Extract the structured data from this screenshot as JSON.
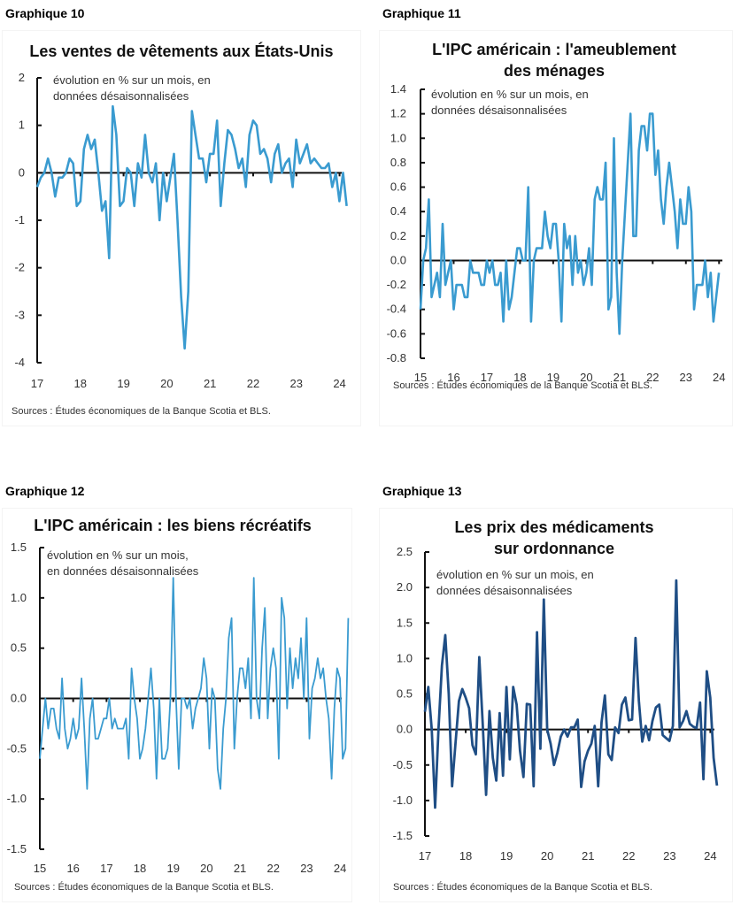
{
  "chart_data": [
    {
      "id": "g10",
      "label": "Graphique 10",
      "type": "line",
      "title": "Les ventes de vêtements aux États-Unis",
      "note": "évolution en % sur un mois, en données désaisonnalisées",
      "source": "Sources : Études économiques de la Banque Scotia et BLS.",
      "xlabel": "",
      "ylabel": "",
      "x_ticks": [
        "17",
        "18",
        "19",
        "20",
        "21",
        "22",
        "23",
        "24"
      ],
      "x_range": [
        17,
        24.05
      ],
      "ylim": [
        -4,
        2
      ],
      "y_ticks": [
        2,
        1,
        0,
        -1,
        -2,
        -3,
        -4
      ],
      "y_tick_labels": [
        "2",
        "1",
        "0",
        "-1",
        "-2",
        "-3",
        "-4"
      ],
      "grid": false,
      "color": "#3a9bd0",
      "series": [
        {
          "name": "ventes de vêtements",
          "start": 17.0,
          "step": 0.0833,
          "values": [
            -0.3,
            -0.1,
            0.0,
            0.3,
            0.0,
            -0.5,
            -0.1,
            -0.1,
            0.0,
            0.3,
            0.2,
            -0.7,
            -0.6,
            0.5,
            0.8,
            0.5,
            0.7,
            0.0,
            -0.8,
            -0.6,
            -1.8,
            1.4,
            0.8,
            -0.7,
            -0.6,
            0.1,
            0.0,
            -0.7,
            0.2,
            -0.1,
            0.8,
            0.0,
            -0.2,
            0.2,
            -1.0,
            0.0,
            -0.6,
            -0.1,
            0.4,
            -1.0,
            -2.6,
            -3.7,
            -2.5,
            1.3,
            0.8,
            0.3,
            0.3,
            -0.2,
            0.4,
            0.4,
            1.1,
            -0.7,
            0.2,
            0.9,
            0.8,
            0.5,
            0.1,
            0.3,
            -0.3,
            0.8,
            1.1,
            1.0,
            0.4,
            0.5,
            0.3,
            -0.2,
            0.4,
            0.6,
            0.0,
            0.2,
            0.3,
            -0.3,
            0.7,
            0.2,
            0.4,
            0.6,
            0.2,
            0.3,
            0.2,
            0.1,
            0.1,
            0.2,
            -0.3,
            0.0,
            -0.6,
            0.0,
            -0.7
          ]
        }
      ]
    },
    {
      "id": "g11",
      "label": "Graphique 11",
      "type": "line",
      "title": "L'IPC américain : l'ameublement des ménages",
      "title_lines": [
        "L'IPC américain : l'ameublement",
        "des ménages"
      ],
      "note": "évolution en % sur un mois, en données désaisonnalisées",
      "source": "Sources : Études économiques de la Banque Scotia et BLS.",
      "xlabel": "",
      "ylabel": "",
      "x_ticks": [
        "15",
        "16",
        "17",
        "18",
        "19",
        "20",
        "21",
        "22",
        "23",
        "24"
      ],
      "x_range": [
        15,
        24.1
      ],
      "ylim": [
        -0.8,
        1.4
      ],
      "y_ticks": [
        1.4,
        1.2,
        1.0,
        0.8,
        0.6,
        0.4,
        0.2,
        0.0,
        -0.2,
        -0.4,
        -0.6,
        -0.8
      ],
      "y_tick_labels": [
        "1.4",
        "1.2",
        "1.0",
        "0.8",
        "0.6",
        "0.4",
        "0.2",
        "0.0",
        "-0.2",
        "-0.4",
        "-0.6",
        "-0.8"
      ],
      "grid": false,
      "color": "#3a9bd0",
      "series": [
        {
          "name": "ameublement",
          "start": 15.0,
          "step": 0.0833,
          "values": [
            -0.4,
            0.0,
            0.1,
            0.5,
            -0.3,
            -0.2,
            -0.1,
            -0.3,
            0.3,
            -0.2,
            -0.1,
            0.0,
            -0.4,
            -0.2,
            -0.2,
            -0.2,
            -0.3,
            -0.3,
            0.0,
            -0.1,
            -0.1,
            -0.1,
            -0.2,
            -0.2,
            0.0,
            -0.1,
            0.0,
            -0.2,
            -0.2,
            -0.1,
            -0.5,
            0.0,
            -0.4,
            -0.3,
            -0.1,
            0.1,
            0.1,
            0.0,
            0.0,
            0.6,
            -0.5,
            0.0,
            0.1,
            0.1,
            0.1,
            0.4,
            0.2,
            0.1,
            0.3,
            0.3,
            0.0,
            -0.5,
            0.3,
            0.1,
            0.2,
            -0.2,
            0.2,
            -0.1,
            0.0,
            -0.2,
            -0.1,
            0.1,
            -0.2,
            0.5,
            0.6,
            0.5,
            0.5,
            0.8,
            -0.4,
            -0.3,
            1.0,
            -0.1,
            -0.6,
            0.0,
            0.4,
            0.8,
            1.2,
            0.2,
            0.2,
            0.9,
            1.1,
            1.1,
            0.9,
            1.2,
            1.2,
            0.7,
            0.9,
            0.5,
            0.3,
            0.6,
            0.8,
            0.6,
            0.4,
            0.1,
            0.5,
            0.3,
            0.3,
            0.6,
            0.4,
            -0.4,
            -0.2,
            -0.2,
            -0.2,
            0.0,
            -0.3,
            -0.1,
            -0.5,
            -0.3,
            -0.1
          ]
        }
      ]
    },
    {
      "id": "g12",
      "label": "Graphique 12",
      "type": "line",
      "title": "L'IPC américain : les biens récréatifs",
      "note": "évolution en % sur un mois, en données désaisonnalisées",
      "note_lines": [
        "évolution en % sur un mois,",
        "en données désaisonnalisées"
      ],
      "source": "Sources : Études économiques de la Banque Scotia et BLS.",
      "xlabel": "",
      "ylabel": "",
      "x_ticks": [
        "15",
        "16",
        "17",
        "18",
        "19",
        "20",
        "21",
        "22",
        "23",
        "24"
      ],
      "x_range": [
        15,
        24.05
      ],
      "ylim": [
        -1.5,
        1.5
      ],
      "y_ticks": [
        1.5,
        1.0,
        0.5,
        0.0,
        -0.5,
        -1.0,
        -1.5
      ],
      "y_tick_labels": [
        "1.5",
        "1.0",
        "0.5",
        "0.0",
        "-0.5",
        "-1.0",
        "-1.5"
      ],
      "grid": false,
      "color": "#3a9bd0",
      "series": [
        {
          "name": "biens récréatifs",
          "start": 15.0,
          "step": 0.0833,
          "values": [
            -0.6,
            -0.3,
            0.0,
            -0.3,
            -0.1,
            -0.1,
            -0.3,
            -0.4,
            0.2,
            -0.3,
            -0.5,
            -0.4,
            -0.2,
            -0.4,
            -0.3,
            0.2,
            -0.3,
            -0.9,
            -0.2,
            0.0,
            -0.4,
            -0.4,
            -0.3,
            -0.2,
            -0.2,
            0.0,
            -0.3,
            -0.2,
            -0.3,
            -0.3,
            -0.3,
            -0.2,
            -0.6,
            0.3,
            0.0,
            -0.2,
            -0.6,
            -0.5,
            -0.3,
            0.0,
            0.3,
            -0.1,
            -0.8,
            0.0,
            -0.6,
            -0.6,
            -0.5,
            0.0,
            1.2,
            0.0,
            -0.7,
            0.0,
            0.0,
            -0.1,
            0.0,
            -0.3,
            -0.1,
            0.0,
            0.1,
            0.4,
            0.2,
            -0.5,
            0.1,
            0.0,
            -0.7,
            -0.9,
            -0.3,
            0.0,
            0.6,
            0.8,
            -0.5,
            0.0,
            0.3,
            0.3,
            0.1,
            0.4,
            -0.2,
            1.2,
            0.0,
            -0.2,
            0.5,
            0.9,
            -0.2,
            0.3,
            0.5,
            0.3,
            -0.6,
            1.0,
            0.8,
            -0.1,
            0.5,
            0.1,
            0.4,
            0.2,
            0.6,
            0.0,
            0.8,
            -0.4,
            0.1,
            0.2,
            0.4,
            0.2,
            0.3,
            0.0,
            -0.2,
            -0.8,
            -0.1,
            0.3,
            0.2,
            -0.6,
            -0.5,
            0.8
          ]
        }
      ]
    },
    {
      "id": "g13",
      "label": "Graphique 13",
      "type": "line",
      "title": "Les prix des médicaments sur ordonnance",
      "title_lines": [
        "Les prix des médicaments",
        "sur ordonnance"
      ],
      "note": "évolution en % sur un mois, en données désaisonnalisées",
      "source": "Sources : Études économiques de la Banque Scotia et BLS.",
      "xlabel": "",
      "ylabel": "",
      "x_ticks": [
        "17",
        "18",
        "19",
        "20",
        "21",
        "22",
        "23",
        "24"
      ],
      "x_range": [
        17,
        24.1
      ],
      "ylim": [
        -1.5,
        2.5
      ],
      "y_ticks": [
        2.5,
        2.0,
        1.5,
        1.0,
        0.5,
        0.0,
        -0.5,
        -1.0,
        -1.5
      ],
      "y_tick_labels": [
        "2.5",
        "2.0",
        "1.5",
        "1.0",
        "0.5",
        "0.0",
        "-0.5",
        "-1.0",
        "-1.5"
      ],
      "grid": false,
      "color": "#1f4e85",
      "series": [
        {
          "name": "médicaments sur ordonnance",
          "start": 17.0,
          "step": 0.0833,
          "values": [
            0.25,
            0.6,
            0.0,
            -1.1,
            0.0,
            0.9,
            1.33,
            0.5,
            -0.8,
            -0.2,
            0.4,
            0.57,
            0.45,
            0.3,
            -0.22,
            -0.35,
            1.02,
            0.1,
            -0.92,
            0.26,
            -0.4,
            -0.72,
            0.23,
            -0.65,
            0.6,
            -0.42,
            0.6,
            0.35,
            -0.3,
            -0.67,
            0.36,
            0.35,
            -0.8,
            1.37,
            -0.27,
            1.83,
            0.0,
            -0.2,
            -0.5,
            -0.33,
            -0.1,
            0.0,
            -0.1,
            0.03,
            0.03,
            0.14,
            -0.81,
            -0.45,
            -0.3,
            -0.2,
            0.05,
            -0.8,
            0.1,
            0.48,
            -0.35,
            -0.43,
            0.03,
            -0.05,
            0.35,
            0.45,
            0.13,
            0.14,
            1.29,
            0.4,
            -0.17,
            0.05,
            -0.15,
            0.12,
            0.31,
            0.35,
            -0.08,
            -0.12,
            -0.16,
            0.05,
            2.1,
            0.03,
            0.12,
            0.26,
            0.08,
            0.04,
            0.02,
            0.38,
            -0.7,
            0.82,
            0.45,
            -0.4,
            -0.79
          ]
        }
      ]
    }
  ]
}
